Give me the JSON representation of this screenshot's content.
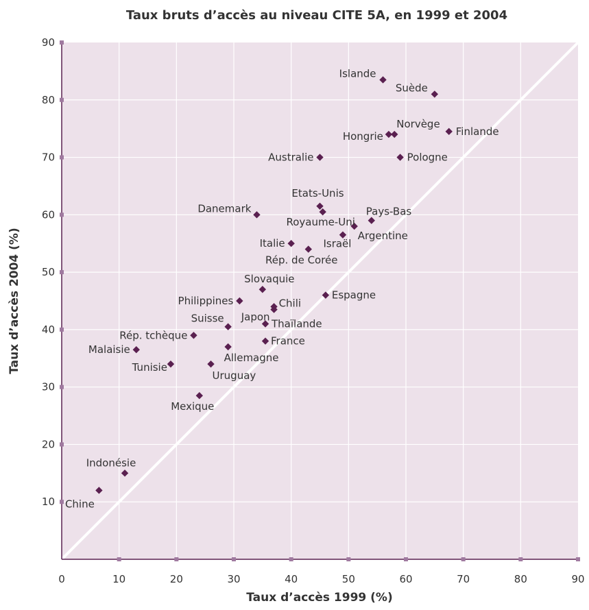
{
  "chart_data": {
    "type": "scatter",
    "title": "Taux bruts d’accès au niveau CITE 5A, en 1999 et 2004",
    "xlabel": "Taux d’accès 1999 (%)",
    "ylabel": "Taux d’accès 2004 (%)",
    "xlim": [
      0,
      90
    ],
    "ylim": [
      0,
      90
    ],
    "xticks": [
      0,
      10,
      20,
      30,
      40,
      50,
      60,
      70,
      80,
      90
    ],
    "yticks": [
      10,
      20,
      30,
      40,
      50,
      60,
      70,
      80,
      90
    ],
    "grid": true,
    "reference_line": "y = x",
    "colors": {
      "plot_background": "#ede1ea",
      "marker": "#5a2050",
      "grid": "#ffffff",
      "axis": "#5a2050",
      "tick_marker": "#a07aa0"
    },
    "points": [
      {
        "label": "Islande",
        "x": 56,
        "y": 83.5
      },
      {
        "label": "Suède",
        "x": 65,
        "y": 81
      },
      {
        "label": "Norvège",
        "x": 58,
        "y": 74
      },
      {
        "label": "Hongrie",
        "x": 57,
        "y": 74
      },
      {
        "label": "Finlande",
        "x": 67.5,
        "y": 74.5
      },
      {
        "label": "Australie",
        "x": 45,
        "y": 70
      },
      {
        "label": "Pologne",
        "x": 59,
        "y": 70
      },
      {
        "label": "Etats-Unis",
        "x": 45,
        "y": 61.5
      },
      {
        "label": "Royaume-Uni",
        "x": 45.5,
        "y": 60.5
      },
      {
        "label": "Danemark",
        "x": 34,
        "y": 60
      },
      {
        "label": "Pays-Bas",
        "x": 54,
        "y": 59
      },
      {
        "label": "Argentine",
        "x": 51,
        "y": 58
      },
      {
        "label": "Israël",
        "x": 49,
        "y": 56.5
      },
      {
        "label": "Italie",
        "x": 40,
        "y": 55
      },
      {
        "label": "Rép. de Corée",
        "x": 43,
        "y": 54
      },
      {
        "label": "Slovaquie",
        "x": 35,
        "y": 47
      },
      {
        "label": "Espagne",
        "x": 46,
        "y": 46
      },
      {
        "label": "Philippines",
        "x": 31,
        "y": 45
      },
      {
        "label": "Chili",
        "x": 37,
        "y": 44
      },
      {
        "label": "Japon",
        "x": 37,
        "y": 43.5
      },
      {
        "label": "Thaïlande",
        "x": 35.5,
        "y": 41
      },
      {
        "label": "Suisse",
        "x": 29,
        "y": 40.5
      },
      {
        "label": "Rép. tchèque",
        "x": 23,
        "y": 39
      },
      {
        "label": "France",
        "x": 35.5,
        "y": 38
      },
      {
        "label": "Allemagne",
        "x": 29,
        "y": 37
      },
      {
        "label": "Malaisie",
        "x": 13,
        "y": 36.5
      },
      {
        "label": "Tunisie",
        "x": 19,
        "y": 34
      },
      {
        "label": "Uruguay",
        "x": 26,
        "y": 34
      },
      {
        "label": "Mexique",
        "x": 24,
        "y": 28.5
      },
      {
        "label": "Indonésie",
        "x": 11,
        "y": 15
      },
      {
        "label": "Chine",
        "x": 6.5,
        "y": 12
      }
    ]
  }
}
